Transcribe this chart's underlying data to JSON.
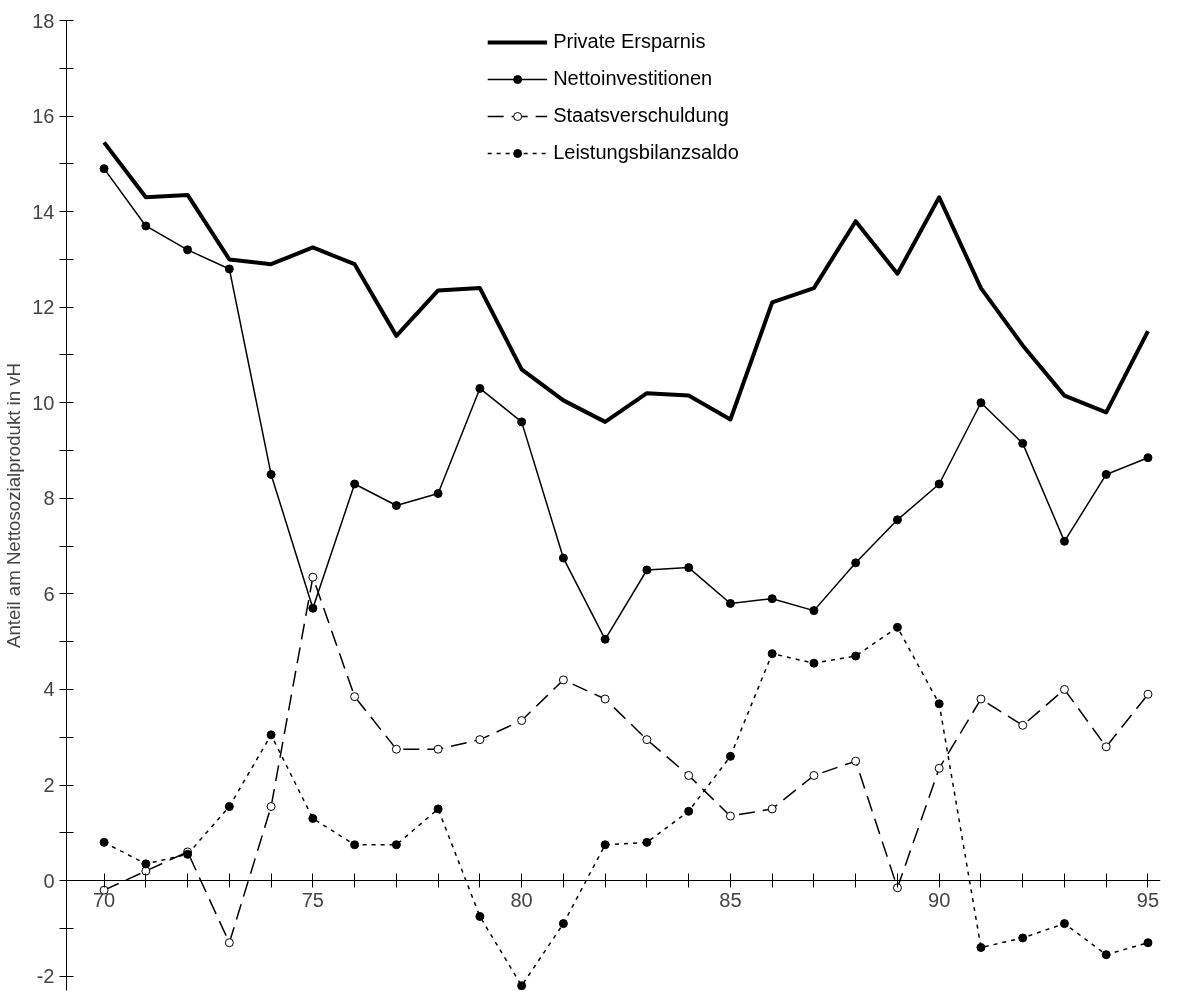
{
  "chart_data": {
    "type": "line",
    "ylabel": "Anteil am Nettosozialprodukt in vH",
    "x": [
      70,
      71,
      72,
      73,
      74,
      75,
      76,
      77,
      78,
      79,
      80,
      81,
      82,
      83,
      84,
      85,
      86,
      87,
      88,
      89,
      90,
      91,
      92,
      93,
      94,
      95
    ],
    "xlim": [
      69.1,
      95.3
    ],
    "ylim": [
      -2.3,
      18
    ],
    "xticks": [
      {
        "value": 70,
        "label": "70"
      },
      {
        "value": 71,
        "label": null
      },
      {
        "value": 72,
        "label": null
      },
      {
        "value": 73,
        "label": null
      },
      {
        "value": 74,
        "label": null
      },
      {
        "value": 75,
        "label": "75"
      },
      {
        "value": 76,
        "label": null
      },
      {
        "value": 77,
        "label": null
      },
      {
        "value": 78,
        "label": null
      },
      {
        "value": 79,
        "label": null
      },
      {
        "value": 80,
        "label": "80"
      },
      {
        "value": 81,
        "label": null
      },
      {
        "value": 82,
        "label": null
      },
      {
        "value": 83,
        "label": null
      },
      {
        "value": 84,
        "label": null
      },
      {
        "value": 85,
        "label": "85"
      },
      {
        "value": 86,
        "label": null
      },
      {
        "value": 87,
        "label": null
      },
      {
        "value": 88,
        "label": null
      },
      {
        "value": 89,
        "label": null
      },
      {
        "value": 90,
        "label": "90"
      },
      {
        "value": 91,
        "label": null
      },
      {
        "value": 92,
        "label": null
      },
      {
        "value": 93,
        "label": null
      },
      {
        "value": 94,
        "label": null
      },
      {
        "value": 95,
        "label": "95"
      }
    ],
    "yticks": [
      -2,
      {
        "value": -1,
        "label": null
      },
      0,
      {
        "value": 1,
        "label": null
      },
      2,
      {
        "value": 3,
        "label": null
      },
      4,
      {
        "value": 5,
        "label": null
      },
      6,
      {
        "value": 7,
        "label": null
      },
      8,
      {
        "value": 9,
        "label": null
      },
      10,
      {
        "value": 11,
        "label": null
      },
      12,
      {
        "value": 13,
        "label": null
      },
      14,
      {
        "value": 15,
        "label": null
      },
      16,
      {
        "value": 17,
        "label": null
      },
      18
    ],
    "grid": false,
    "legend": "top",
    "series": [
      {
        "name": "Private Ersparnis",
        "color": "#000000",
        "line_style": "solid",
        "marker": "none",
        "values": [
          15.45,
          14.3,
          14.35,
          13.0,
          12.9,
          13.25,
          12.9,
          11.4,
          12.35,
          12.4,
          10.7,
          10.05,
          9.6,
          10.2,
          10.15,
          9.65,
          12.1,
          12.4,
          13.8,
          12.7,
          14.3,
          12.4,
          11.2,
          10.15,
          9.8,
          11.5
        ]
      },
      {
        "name": "Nettoinvestitionen",
        "color": "#000000",
        "line_style": "solid",
        "marker": "circle",
        "values": [
          14.9,
          13.7,
          13.2,
          12.8,
          8.5,
          5.7,
          8.3,
          7.85,
          8.1,
          10.3,
          9.6,
          6.75,
          5.05,
          6.5,
          6.55,
          5.8,
          5.9,
          5.65,
          6.65,
          7.55,
          8.3,
          10.0,
          9.15,
          7.1,
          8.5,
          8.85
        ]
      },
      {
        "name": "Staatsverschuldung",
        "color": "#000000",
        "line_style": "dashed",
        "marker": "circle",
        "values": [
          -0.2,
          0.2,
          0.6,
          -1.3,
          1.55,
          6.35,
          3.85,
          2.75,
          2.75,
          2.95,
          3.35,
          4.2,
          3.8,
          2.95,
          2.2,
          1.35,
          1.5,
          2.2,
          2.5,
          -0.15,
          2.35,
          3.8,
          3.25,
          4.0,
          2.8,
          3.9
        ]
      },
      {
        "name": "Leistungsbilanzsaldo",
        "color": "#000000",
        "line_style": "dotted",
        "marker": "circle",
        "values": [
          0.8,
          0.35,
          0.55,
          1.55,
          3.05,
          1.3,
          0.75,
          0.75,
          1.5,
          -0.75,
          -2.2,
          -0.9,
          0.75,
          0.8,
          1.45,
          2.6,
          4.75,
          4.55,
          4.7,
          5.3,
          3.7,
          -1.4,
          -1.2,
          -0.9,
          -1.55,
          -1.3
        ]
      }
    ]
  }
}
